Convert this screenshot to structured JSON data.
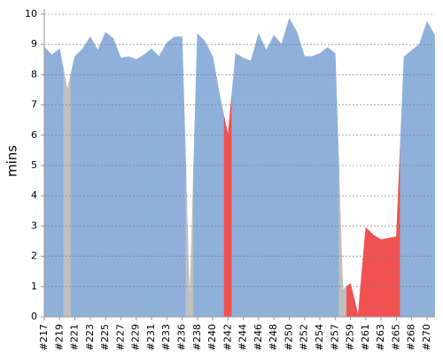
{
  "chart_data": {
    "type": "area",
    "y_label": "mins",
    "categories": [
      "#217",
      null,
      "#219",
      null,
      "#221",
      null,
      "#223",
      null,
      "#225",
      null,
      "#227",
      null,
      "#229",
      null,
      "#231",
      null,
      "#233",
      null,
      "#236",
      null,
      "#238",
      null,
      "#240",
      null,
      "#242",
      null,
      "#244",
      null,
      "#246",
      null,
      "#248",
      null,
      "#250",
      null,
      "#252",
      null,
      "#254",
      null,
      "#257",
      null,
      "#259",
      null,
      "#261",
      null,
      "#263",
      null,
      "#265",
      null,
      "#268",
      null,
      "#270",
      null
    ],
    "values": [
      8.9,
      8.65,
      8.85,
      7.5,
      8.6,
      8.85,
      9.25,
      8.8,
      9.4,
      9.2,
      8.55,
      8.6,
      8.5,
      8.65,
      8.85,
      8.6,
      9.05,
      9.25,
      9.25,
      0.4,
      9.35,
      9.1,
      8.6,
      7.2,
      6.0,
      8.7,
      8.55,
      8.45,
      9.35,
      8.8,
      9.3,
      9.0,
      9.85,
      9.4,
      8.6,
      8.6,
      8.7,
      8.9,
      8.7,
      0.9,
      1.1,
      0.05,
      2.95,
      2.7,
      2.55,
      2.6,
      2.65,
      8.6,
      8.8,
      9.0,
      9.75,
      9.3
    ],
    "colors": [
      "#8eb0da",
      "#8eb0da",
      "#8eb0da",
      "#c0c0c0",
      "#8eb0da",
      "#8eb0da",
      "#8eb0da",
      "#8eb0da",
      "#8eb0da",
      "#8eb0da",
      "#8eb0da",
      "#8eb0da",
      "#8eb0da",
      "#8eb0da",
      "#8eb0da",
      "#8eb0da",
      "#8eb0da",
      "#8eb0da",
      "#8eb0da",
      "#c0c0c0",
      "#8eb0da",
      "#8eb0da",
      "#8eb0da",
      "#8eb0da",
      "#f05252",
      "#8eb0da",
      "#8eb0da",
      "#8eb0da",
      "#8eb0da",
      "#8eb0da",
      "#8eb0da",
      "#8eb0da",
      "#8eb0da",
      "#8eb0da",
      "#8eb0da",
      "#8eb0da",
      "#8eb0da",
      "#8eb0da",
      "#8eb0da",
      "#c0c0c0",
      "#f05252",
      "#f05252",
      "#f05252",
      "#f05252",
      "#f05252",
      "#f05252",
      "#f05252",
      "#8eb0da",
      "#8eb0da",
      "#8eb0da",
      "#8eb0da",
      "#8eb0da"
    ],
    "ylim": [
      0,
      10
    ],
    "yticks": [
      0,
      1,
      2,
      3,
      4,
      5,
      6,
      7,
      8,
      9,
      10
    ],
    "grid": true
  }
}
